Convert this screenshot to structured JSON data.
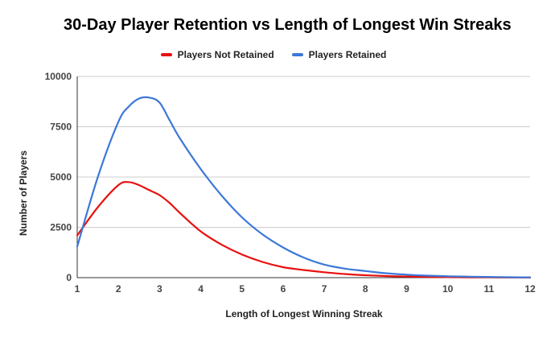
{
  "chart_data": {
    "type": "line",
    "title": "30-Day Player Retention vs Length of Longest Win Streaks",
    "xlabel": "Length of Longest Winning Streak",
    "ylabel": "Number of Players",
    "x": [
      1,
      1.5,
      2,
      2.25,
      2.5,
      2.75,
      3,
      3.25,
      3.5,
      4,
      4.5,
      5,
      5.5,
      6,
      6.5,
      7,
      7.5,
      8,
      8.5,
      9,
      9.5,
      10,
      10.5,
      11,
      11.5,
      12
    ],
    "xlim": [
      1,
      12
    ],
    "ylim": [
      0,
      10000
    ],
    "xticks": [
      "1",
      "2",
      "3",
      "4",
      "5",
      "6",
      "7",
      "8",
      "9",
      "10",
      "11",
      "12"
    ],
    "yticks": [
      "0",
      "2500",
      "5000",
      "7500",
      "10000"
    ],
    "grid": true,
    "legend_position": "top",
    "series": [
      {
        "name": "Players Not Retained",
        "color": "#e8110f",
        "values": [
          2100,
          3500,
          4600,
          4750,
          4600,
          4350,
          4100,
          3700,
          3200,
          2300,
          1650,
          1150,
          780,
          520,
          380,
          270,
          180,
          120,
          80,
          55,
          35,
          25,
          18,
          12,
          8,
          5
        ]
      },
      {
        "name": "Players Retained",
        "color": "#3c78d8",
        "values": [
          1550,
          5000,
          7750,
          8500,
          8900,
          8950,
          8700,
          7800,
          6900,
          5400,
          4100,
          3000,
          2150,
          1500,
          1000,
          650,
          450,
          330,
          220,
          150,
          100,
          70,
          50,
          35,
          20,
          12
        ]
      }
    ]
  }
}
